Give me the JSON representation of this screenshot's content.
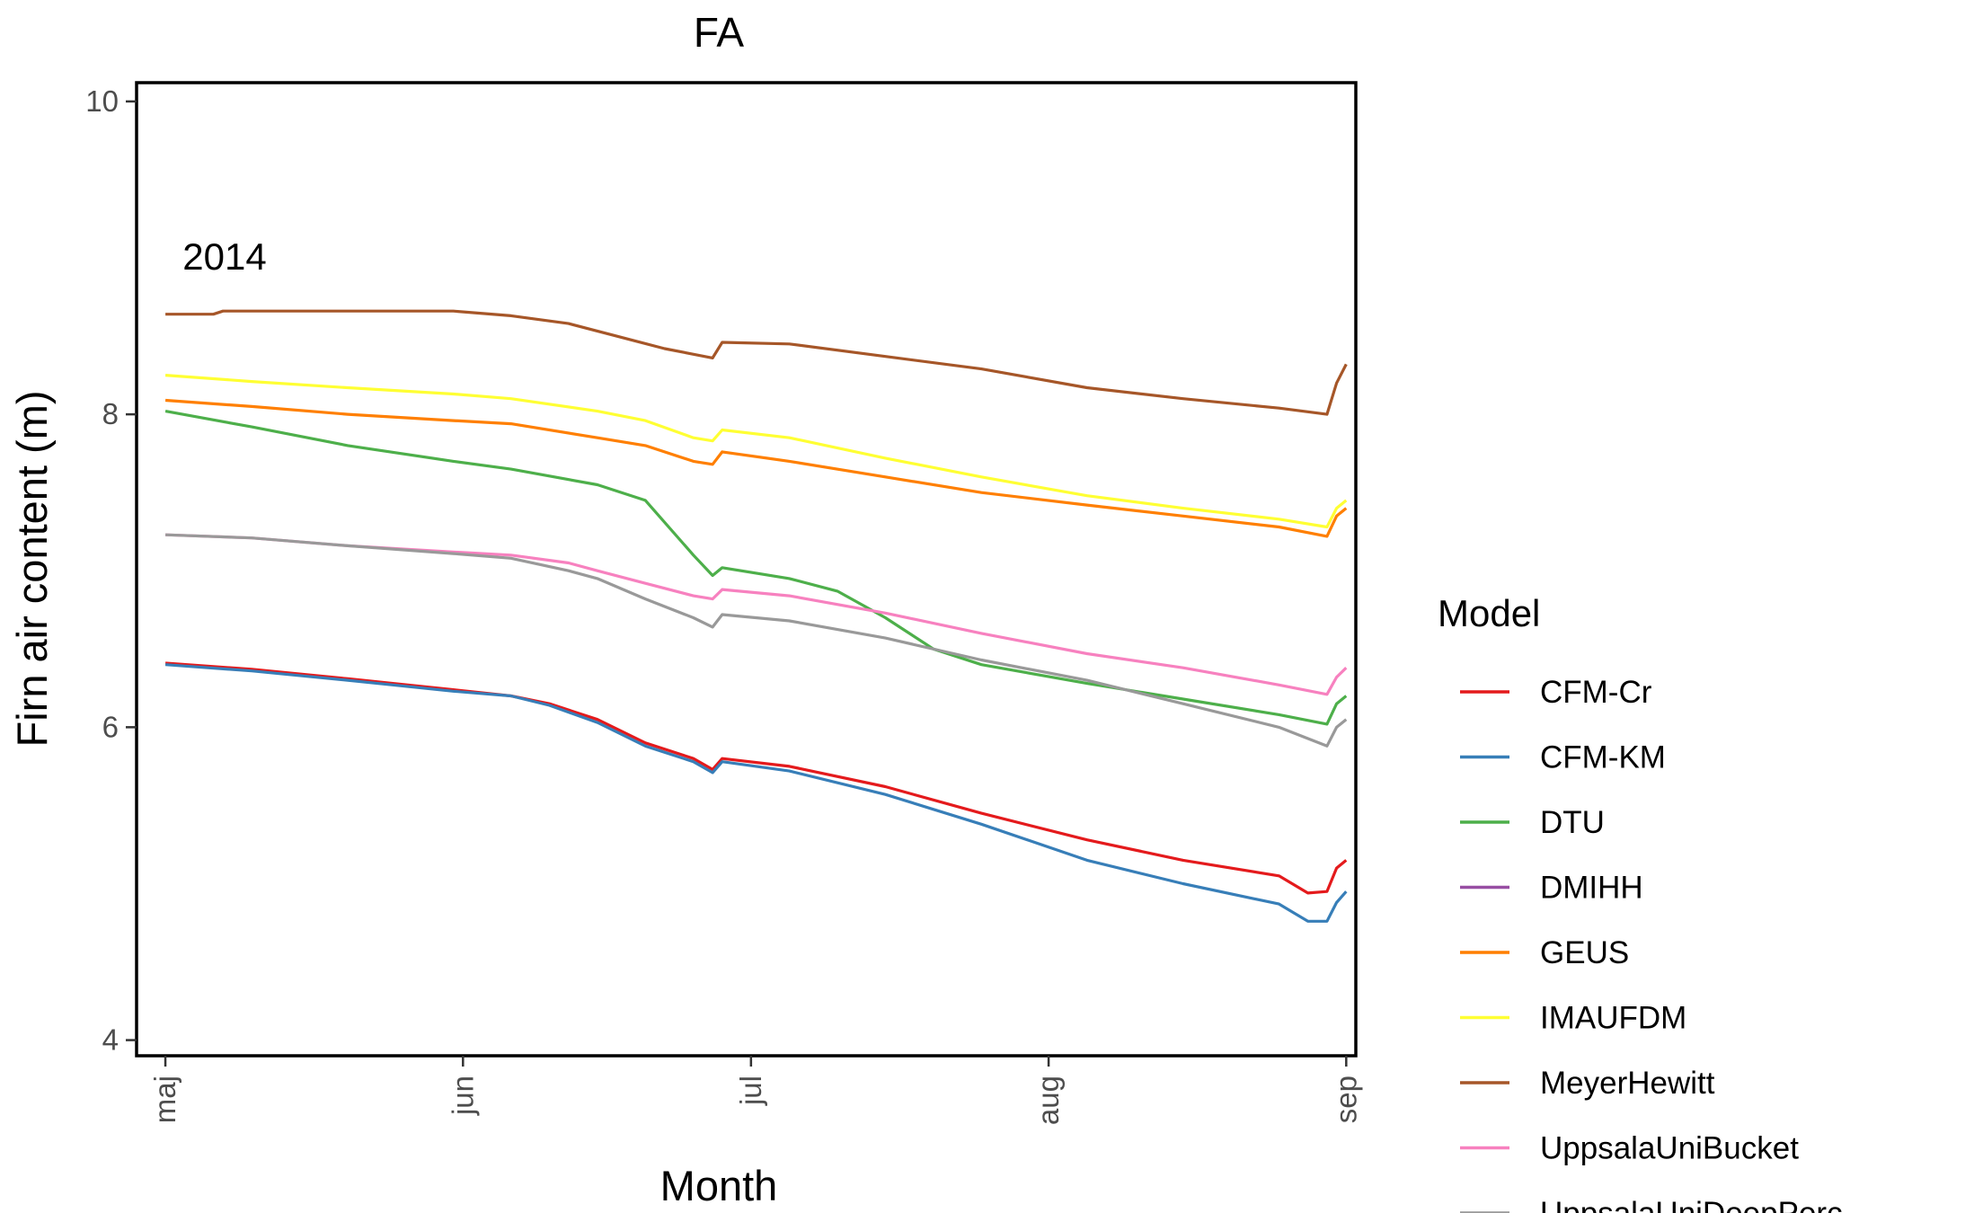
{
  "chart_data": {
    "type": "line",
    "title": "FA",
    "xlabel": "Month",
    "ylabel": "Firn air content (m)",
    "annotation": "2014",
    "x_ticks": [
      "maj",
      "jun",
      "jul",
      "aug",
      "sep"
    ],
    "x_tick_dates": [
      "2014-05-01",
      "2014-06-01",
      "2014-07-01",
      "2014-08-01",
      "2014-09-01"
    ],
    "y_ticks": [
      "4",
      "6",
      "8",
      "10"
    ],
    "ylim": [
      3.9,
      10.12
    ],
    "xlim": [
      "2014-04-28",
      "2014-09-02"
    ],
    "grid": false,
    "legend": {
      "title": "Model",
      "position": "right"
    },
    "series": [
      {
        "name": "CFM-Cr",
        "color": "#E41A1C",
        "points": [
          [
            "2014-05-01",
            6.41
          ],
          [
            "2014-05-10",
            6.37
          ],
          [
            "2014-05-20",
            6.31
          ],
          [
            "2014-05-31",
            6.24
          ],
          [
            "2014-06-06",
            6.2
          ],
          [
            "2014-06-10",
            6.15
          ],
          [
            "2014-06-15",
            6.05
          ],
          [
            "2014-06-20",
            5.9
          ],
          [
            "2014-06-25",
            5.8
          ],
          [
            "2014-06-27",
            5.73
          ],
          [
            "2014-06-28",
            5.8
          ],
          [
            "2014-07-05",
            5.75
          ],
          [
            "2014-07-15",
            5.62
          ],
          [
            "2014-07-25",
            5.45
          ],
          [
            "2014-08-05",
            5.28
          ],
          [
            "2014-08-15",
            5.15
          ],
          [
            "2014-08-25",
            5.05
          ],
          [
            "2014-08-28",
            4.94
          ],
          [
            "2014-08-30",
            4.95
          ],
          [
            "2014-08-31",
            5.1
          ],
          [
            "2014-09-01",
            5.15
          ]
        ]
      },
      {
        "name": "CFM-KM",
        "color": "#377EB8",
        "points": [
          [
            "2014-05-01",
            6.4
          ],
          [
            "2014-05-10",
            6.36
          ],
          [
            "2014-05-20",
            6.3
          ],
          [
            "2014-05-31",
            6.23
          ],
          [
            "2014-06-06",
            6.2
          ],
          [
            "2014-06-10",
            6.14
          ],
          [
            "2014-06-15",
            6.03
          ],
          [
            "2014-06-20",
            5.88
          ],
          [
            "2014-06-25",
            5.78
          ],
          [
            "2014-06-27",
            5.71
          ],
          [
            "2014-06-28",
            5.78
          ],
          [
            "2014-07-05",
            5.72
          ],
          [
            "2014-07-15",
            5.57
          ],
          [
            "2014-07-25",
            5.38
          ],
          [
            "2014-08-05",
            5.15
          ],
          [
            "2014-08-15",
            5.0
          ],
          [
            "2014-08-25",
            4.87
          ],
          [
            "2014-08-28",
            4.76
          ],
          [
            "2014-08-30",
            4.76
          ],
          [
            "2014-08-31",
            4.88
          ],
          [
            "2014-09-01",
            4.95
          ]
        ]
      },
      {
        "name": "DTU",
        "color": "#4DAF4A",
        "points": [
          [
            "2014-05-01",
            8.02
          ],
          [
            "2014-05-10",
            7.92
          ],
          [
            "2014-05-20",
            7.8
          ],
          [
            "2014-05-31",
            7.7
          ],
          [
            "2014-06-06",
            7.65
          ],
          [
            "2014-06-15",
            7.55
          ],
          [
            "2014-06-20",
            7.45
          ],
          [
            "2014-06-25",
            7.1
          ],
          [
            "2014-06-27",
            6.97
          ],
          [
            "2014-06-28",
            7.02
          ],
          [
            "2014-07-05",
            6.95
          ],
          [
            "2014-07-10",
            6.87
          ],
          [
            "2014-07-15",
            6.7
          ],
          [
            "2014-07-20",
            6.5
          ],
          [
            "2014-07-25",
            6.4
          ],
          [
            "2014-08-05",
            6.28
          ],
          [
            "2014-08-15",
            6.18
          ],
          [
            "2014-08-25",
            6.08
          ],
          [
            "2014-08-30",
            6.02
          ],
          [
            "2014-08-31",
            6.15
          ],
          [
            "2014-09-01",
            6.2
          ]
        ]
      },
      {
        "name": "DMIHH",
        "color": "#984EA3",
        "points": []
      },
      {
        "name": "GEUS",
        "color": "#FF7F00",
        "points": [
          [
            "2014-05-01",
            8.09
          ],
          [
            "2014-05-10",
            8.05
          ],
          [
            "2014-05-20",
            8.0
          ],
          [
            "2014-05-31",
            7.96
          ],
          [
            "2014-06-06",
            7.94
          ],
          [
            "2014-06-15",
            7.85
          ],
          [
            "2014-06-20",
            7.8
          ],
          [
            "2014-06-25",
            7.7
          ],
          [
            "2014-06-27",
            7.68
          ],
          [
            "2014-06-28",
            7.76
          ],
          [
            "2014-07-05",
            7.7
          ],
          [
            "2014-07-15",
            7.6
          ],
          [
            "2014-07-25",
            7.5
          ],
          [
            "2014-08-05",
            7.42
          ],
          [
            "2014-08-15",
            7.35
          ],
          [
            "2014-08-25",
            7.28
          ],
          [
            "2014-08-30",
            7.22
          ],
          [
            "2014-08-31",
            7.35
          ],
          [
            "2014-09-01",
            7.4
          ]
        ]
      },
      {
        "name": "IMAUFDM",
        "color": "#FFFF33",
        "points": [
          [
            "2014-05-01",
            8.25
          ],
          [
            "2014-05-10",
            8.21
          ],
          [
            "2014-05-20",
            8.17
          ],
          [
            "2014-05-31",
            8.13
          ],
          [
            "2014-06-06",
            8.1
          ],
          [
            "2014-06-15",
            8.02
          ],
          [
            "2014-06-20",
            7.96
          ],
          [
            "2014-06-25",
            7.85
          ],
          [
            "2014-06-27",
            7.83
          ],
          [
            "2014-06-28",
            7.9
          ],
          [
            "2014-07-05",
            7.85
          ],
          [
            "2014-07-15",
            7.72
          ],
          [
            "2014-07-25",
            7.6
          ],
          [
            "2014-08-05",
            7.48
          ],
          [
            "2014-08-15",
            7.4
          ],
          [
            "2014-08-25",
            7.33
          ],
          [
            "2014-08-30",
            7.28
          ],
          [
            "2014-08-31",
            7.4
          ],
          [
            "2014-09-01",
            7.45
          ]
        ]
      },
      {
        "name": "MeyerHewitt",
        "color": "#A65628",
        "points": [
          [
            "2014-05-01",
            8.64
          ],
          [
            "2014-05-06",
            8.64
          ],
          [
            "2014-05-07",
            8.66
          ],
          [
            "2014-05-31",
            8.66
          ],
          [
            "2014-06-06",
            8.63
          ],
          [
            "2014-06-12",
            8.58
          ],
          [
            "2014-06-17",
            8.5
          ],
          [
            "2014-06-22",
            8.42
          ],
          [
            "2014-06-27",
            8.36
          ],
          [
            "2014-06-28",
            8.46
          ],
          [
            "2014-07-05",
            8.45
          ],
          [
            "2014-07-15",
            8.37
          ],
          [
            "2014-07-25",
            8.29
          ],
          [
            "2014-08-05",
            8.17
          ],
          [
            "2014-08-15",
            8.1
          ],
          [
            "2014-08-25",
            8.04
          ],
          [
            "2014-08-30",
            8.0
          ],
          [
            "2014-08-31",
            8.2
          ],
          [
            "2014-09-01",
            8.32
          ]
        ]
      },
      {
        "name": "UppsalaUniBucket",
        "color": "#F781BF",
        "points": [
          [
            "2014-05-01",
            7.23
          ],
          [
            "2014-05-10",
            7.21
          ],
          [
            "2014-05-20",
            7.16
          ],
          [
            "2014-05-31",
            7.12
          ],
          [
            "2014-06-06",
            7.1
          ],
          [
            "2014-06-12",
            7.05
          ],
          [
            "2014-06-15",
            7.0
          ],
          [
            "2014-06-20",
            6.92
          ],
          [
            "2014-06-25",
            6.84
          ],
          [
            "2014-06-27",
            6.82
          ],
          [
            "2014-06-28",
            6.88
          ],
          [
            "2014-07-05",
            6.84
          ],
          [
            "2014-07-15",
            6.73
          ],
          [
            "2014-07-25",
            6.6
          ],
          [
            "2014-08-05",
            6.47
          ],
          [
            "2014-08-15",
            6.38
          ],
          [
            "2014-08-25",
            6.27
          ],
          [
            "2014-08-30",
            6.21
          ],
          [
            "2014-08-31",
            6.32
          ],
          [
            "2014-09-01",
            6.38
          ]
        ]
      },
      {
        "name": "UppsalaUniDeepPerc",
        "color": "#999999",
        "points": [
          [
            "2014-05-01",
            7.23
          ],
          [
            "2014-05-10",
            7.21
          ],
          [
            "2014-05-20",
            7.16
          ],
          [
            "2014-05-31",
            7.11
          ],
          [
            "2014-06-06",
            7.08
          ],
          [
            "2014-06-12",
            7.0
          ],
          [
            "2014-06-15",
            6.95
          ],
          [
            "2014-06-20",
            6.82
          ],
          [
            "2014-06-25",
            6.7
          ],
          [
            "2014-06-27",
            6.64
          ],
          [
            "2014-06-28",
            6.72
          ],
          [
            "2014-07-05",
            6.68
          ],
          [
            "2014-07-15",
            6.57
          ],
          [
            "2014-07-25",
            6.43
          ],
          [
            "2014-08-05",
            6.3
          ],
          [
            "2014-08-15",
            6.15
          ],
          [
            "2014-08-25",
            6.0
          ],
          [
            "2014-08-30",
            5.88
          ],
          [
            "2014-08-31",
            6.0
          ],
          [
            "2014-09-01",
            6.05
          ]
        ]
      }
    ]
  }
}
